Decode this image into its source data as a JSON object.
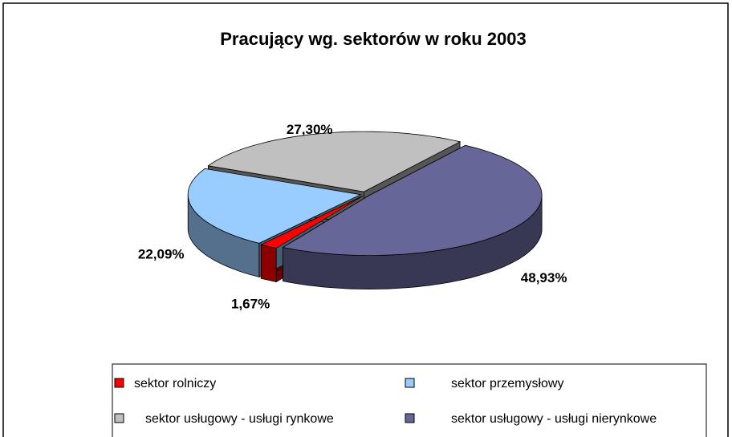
{
  "chart_data": {
    "type": "pie",
    "title": "Pracujący wg. sektorów w roku 2003",
    "categories": [
      "sektor rolniczy",
      "sektor przemysłowy",
      "sektor usługowy - usługi rynkowe",
      "sektor usługowy - usługi nierynkowe"
    ],
    "values": [
      1.67,
      22.09,
      27.3,
      48.93
    ],
    "value_labels": [
      "1,67%",
      "22,09%",
      "27,30%",
      "48,93%"
    ],
    "colors": [
      "#ff0000",
      "#99ccff",
      "#c0c0c0",
      "#666699"
    ],
    "legend": "bottom"
  }
}
